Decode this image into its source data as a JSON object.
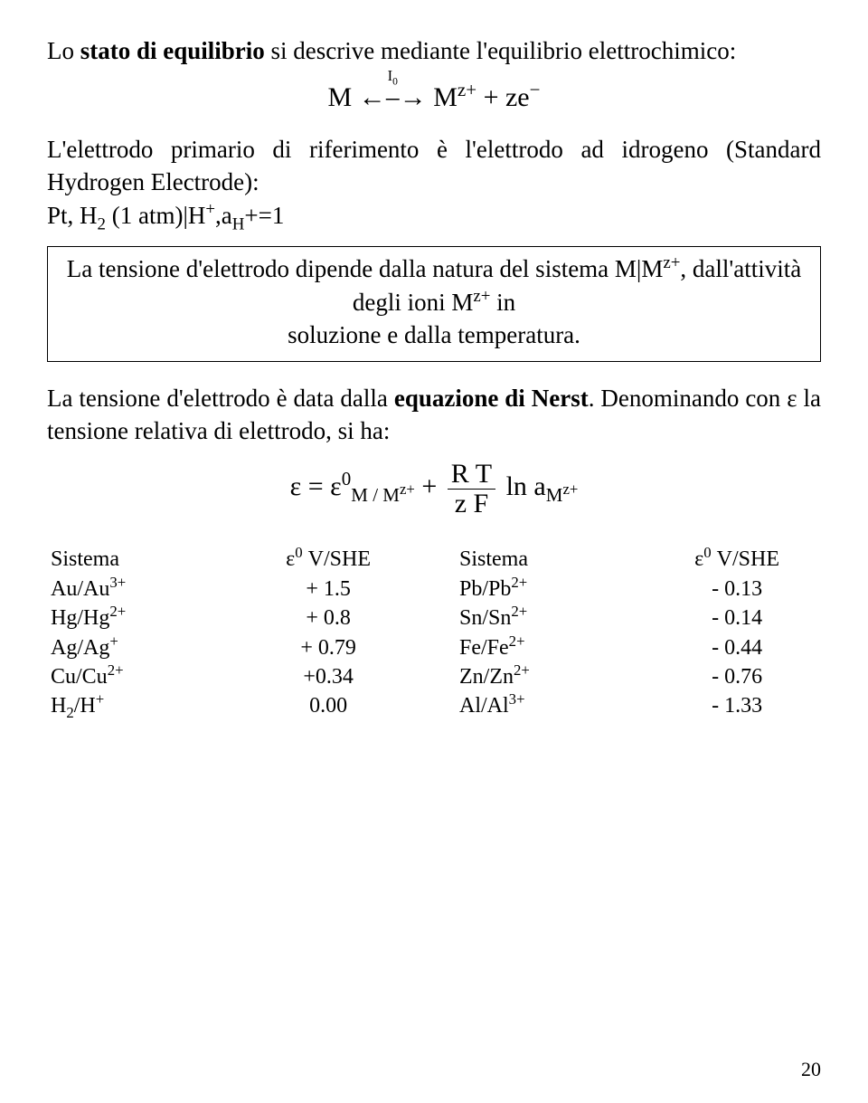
{
  "para1_pre": "Lo ",
  "para1_bold": "stato di equilibrio",
  "para1_post": " si descrive mediante l'equilibrio elettrochimico:",
  "eq1": {
    "M": "M",
    "I0": "I",
    "I0_sub": "0",
    "arrow": "←⎯→",
    "Mz": "M",
    "z_plus": "z+",
    "plus": " + z",
    "e": "e",
    "minus": "−"
  },
  "para2": "L'elettrodo primario di riferimento è l'elettrodo ad idrogeno (Standard Hydrogen Electrode):",
  "para2_line2_pre": "Pt, H",
  "para2_line2_sub2": "2",
  "para2_line2_mid": " (1 atm)|H",
  "para2_line2_sup": "+",
  "para2_line2_a": ",a",
  "para2_line2_Hsub": "H",
  "para2_line2_tail": "+=1",
  "box_line1_pre": "La tensione d'elettrodo dipende dalla natura del sistema M|M",
  "box_zsup": "z+",
  "box_line1_mid": ", dall'attività degli ioni M",
  "box_line1_mid2": " in",
  "box_line2": "soluzione e dalla temperatura.",
  "para3_pre": "La tensione d'elettrodo è data dalla ",
  "para3_bold": "equazione di Nerst",
  "para3_post": ". Denominando con ε la tensione relativa di elettrodo, si ha:",
  "eq2": {
    "eps": "ε",
    "equals": " = ",
    "eps0": "ε",
    "sup0": "0",
    "sub_mm": "M / M",
    "sub_mm_sup": "z+",
    "plus": " + ",
    "num": "R T",
    "den": "z F",
    "ln": " ln a",
    "a_sub": "M",
    "a_sub_sup": "z+"
  },
  "tables": {
    "headers": {
      "sys": "Sistema",
      "val_pre": "ε",
      "val_sup": "0",
      "val_post": " V/SHE"
    },
    "left": [
      {
        "sys_base": "Au/Au",
        "sys_sup": "3+",
        "val": "+ 1.5"
      },
      {
        "sys_base": "Hg/Hg",
        "sys_sup": "2+",
        "val": "+ 0.8"
      },
      {
        "sys_base": "Ag/Ag",
        "sys_sup": "+",
        "val": "+ 0.79"
      },
      {
        "sys_base": "Cu/Cu",
        "sys_sup": "2+",
        "val": "+0.34"
      },
      {
        "sys_base": "H",
        "sys_sub": "2",
        "sys_base2": "/H",
        "sys_sup": "+",
        "val": "0.00"
      }
    ],
    "right": [
      {
        "sys_base": "Pb/Pb",
        "sys_sup": "2+",
        "val": "- 0.13"
      },
      {
        "sys_base": "Sn/Sn",
        "sys_sup": "2+",
        "val": "- 0.14"
      },
      {
        "sys_base": "Fe/Fe",
        "sys_sup": "2+",
        "val": "- 0.44"
      },
      {
        "sys_base": "Zn/Zn",
        "sys_sup": "2+",
        "val": "- 0.76"
      },
      {
        "sys_base": "Al/Al",
        "sys_sup": "3+",
        "val": "- 1.33"
      }
    ]
  },
  "page_number": "20"
}
